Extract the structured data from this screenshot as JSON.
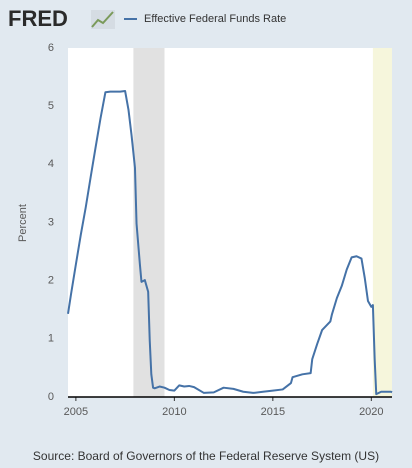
{
  "logo": "FRED",
  "chart_data": {
    "type": "line",
    "y_label": "Percent",
    "source": "Source: Board of Governors of the Federal Reserve System (US)",
    "x": [
      2004.6,
      2004.75,
      2005.0,
      2005.25,
      2005.5,
      2005.75,
      2006.0,
      2006.25,
      2006.5,
      2006.75,
      2007.0,
      2007.25,
      2007.5,
      2007.67,
      2007.83,
      2008.0,
      2008.08,
      2008.25,
      2008.33,
      2008.5,
      2008.67,
      2008.75,
      2008.83,
      2008.92,
      2009.0,
      2009.25,
      2009.5,
      2009.75,
      2010.0,
      2010.25,
      2010.5,
      2010.75,
      2011.0,
      2011.5,
      2012.0,
      2012.5,
      2013.0,
      2013.5,
      2014.0,
      2014.5,
      2015.0,
      2015.5,
      2015.92,
      2016.0,
      2016.5,
      2016.92,
      2017.0,
      2017.25,
      2017.5,
      2017.92,
      2018.0,
      2018.25,
      2018.5,
      2018.75,
      2019.0,
      2019.25,
      2019.5,
      2019.67,
      2019.83,
      2020.0,
      2020.08,
      2020.17,
      2020.25,
      2020.5,
      2021.0,
      2021.05
    ],
    "series": [
      {
        "name": "Effective Federal Funds Rate",
        "color": "#4572a7",
        "values": [
          1.43,
          1.76,
          2.28,
          2.79,
          3.26,
          3.78,
          4.29,
          4.79,
          5.24,
          5.25,
          5.25,
          5.25,
          5.26,
          4.94,
          4.49,
          3.94,
          2.98,
          2.28,
          1.98,
          2.01,
          1.81,
          0.97,
          0.39,
          0.16,
          0.15,
          0.18,
          0.16,
          0.12,
          0.11,
          0.2,
          0.18,
          0.19,
          0.17,
          0.07,
          0.08,
          0.16,
          0.14,
          0.09,
          0.07,
          0.09,
          0.11,
          0.13,
          0.24,
          0.34,
          0.39,
          0.41,
          0.65,
          0.91,
          1.15,
          1.3,
          1.42,
          1.7,
          1.91,
          2.19,
          2.4,
          2.42,
          2.38,
          2.04,
          1.65,
          1.55,
          1.58,
          0.65,
          0.05,
          0.09,
          0.09,
          0.08
        ]
      }
    ],
    "xlim": [
      2004.6,
      2021.05
    ],
    "xticks": [
      2005,
      2010,
      2015,
      2020
    ],
    "ylim": [
      0,
      6
    ],
    "yticks": [
      0,
      1,
      2,
      3,
      4,
      5,
      6
    ],
    "grid": false,
    "recessions": [
      {
        "start": 2007.92,
        "end": 2009.5,
        "color": "#e1e1e1"
      },
      {
        "start": 2020.08,
        "end": 2021.05,
        "color": "#f6f6dc"
      }
    ]
  }
}
